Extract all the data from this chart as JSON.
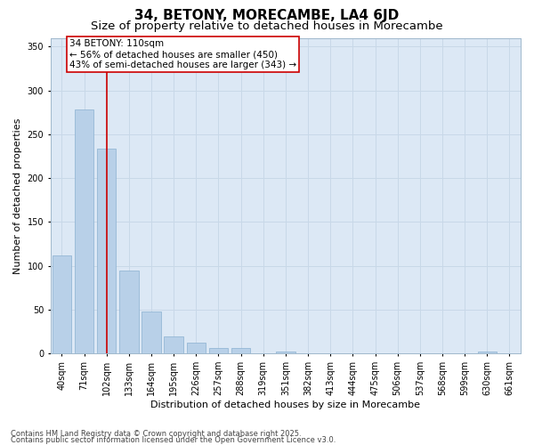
{
  "title_line1": "34, BETONY, MORECAMBE, LA4 6JD",
  "title_line2": "Size of property relative to detached houses in Morecambe",
  "xlabel": "Distribution of detached houses by size in Morecambe",
  "ylabel": "Number of detached properties",
  "categories": [
    "40sqm",
    "71sqm",
    "102sqm",
    "133sqm",
    "164sqm",
    "195sqm",
    "226sqm",
    "257sqm",
    "288sqm",
    "319sqm",
    "351sqm",
    "382sqm",
    "413sqm",
    "444sqm",
    "475sqm",
    "506sqm",
    "537sqm",
    "568sqm",
    "599sqm",
    "630sqm",
    "661sqm"
  ],
  "values": [
    112,
    278,
    234,
    95,
    48,
    20,
    12,
    6,
    6,
    0,
    2,
    0,
    0,
    0,
    0,
    0,
    0,
    0,
    0,
    2,
    0
  ],
  "bar_color": "#b8d0e8",
  "bar_edge_color": "#8ab0d0",
  "reference_line_x": 2,
  "reference_line_color": "#cc0000",
  "annotation_text": "34 BETONY: 110sqm\n← 56% of detached houses are smaller (450)\n43% of semi-detached houses are larger (343) →",
  "annotation_box_color": "#cc0000",
  "ylim": [
    0,
    360
  ],
  "yticks": [
    0,
    50,
    100,
    150,
    200,
    250,
    300,
    350
  ],
  "grid_color": "#c8d8e8",
  "bg_color": "#dce8f5",
  "footer_line1": "Contains HM Land Registry data © Crown copyright and database right 2025.",
  "footer_line2": "Contains public sector information licensed under the Open Government Licence v3.0.",
  "title_fontsize": 11,
  "subtitle_fontsize": 9.5,
  "axis_label_fontsize": 8,
  "tick_fontsize": 7,
  "annotation_fontsize": 7.5,
  "footer_fontsize": 6
}
